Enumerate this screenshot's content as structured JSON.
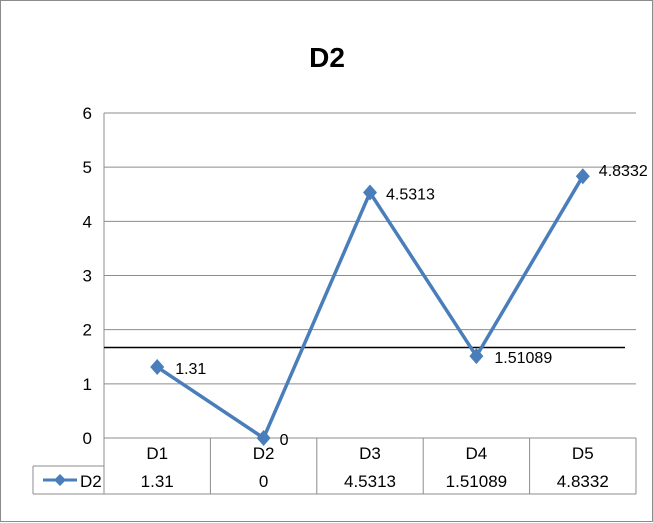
{
  "chart_data": {
    "type": "line",
    "title": "D2",
    "categories": [
      "D1",
      "D2",
      "D3",
      "D4",
      "D5"
    ],
    "series": [
      {
        "name": "D2",
        "values": [
          1.31,
          0,
          4.5313,
          1.51089,
          4.8332
        ],
        "color": "#4a7ebb"
      }
    ],
    "data_labels": [
      "1.31",
      "0",
      "4.5313",
      "1.51089",
      "4.8332"
    ],
    "ylim": [
      0,
      6
    ],
    "yticks": [
      "0",
      "1",
      "2",
      "3",
      "4",
      "5",
      "6"
    ],
    "reference_line": {
      "y": 1.67,
      "color": "#000000"
    },
    "grid": true,
    "legend": "data-table-below",
    "data_table": {
      "series_label": "D2",
      "values": [
        "1.31",
        "0",
        "4.5313",
        "1.51089",
        "4.8332"
      ]
    }
  }
}
